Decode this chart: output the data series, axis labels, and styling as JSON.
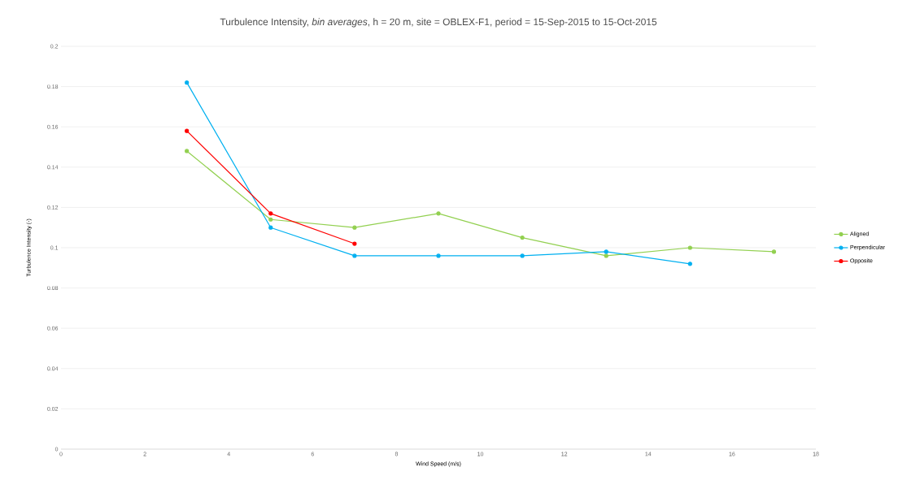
{
  "chart_data": {
    "type": "line",
    "title": "Turbulence Intensity, *bin averages*, h = 20 m, site = OBLEX-F1, period = 15-Sep-2015 to 15-Oct-2015",
    "xlabel": "Wind Speed (m/s)",
    "ylabel": "Turbulence Intensity (-)",
    "series": [
      {
        "name": "Aligned",
        "color": "#92d050",
        "x": [
          3,
          5,
          7,
          9,
          11,
          13,
          15,
          17
        ],
        "values": [
          0.148,
          0.114,
          0.11,
          0.117,
          0.105,
          0.096,
          0.1,
          0.098
        ]
      },
      {
        "name": "Perpendicular",
        "color": "#00b0f0",
        "x": [
          3,
          5,
          7,
          9,
          11,
          13,
          15
        ],
        "values": [
          0.182,
          0.11,
          0.096,
          0.096,
          0.096,
          0.098,
          0.092
        ]
      },
      {
        "name": "Opposite",
        "color": "#ff0000",
        "x": [
          3,
          5,
          7
        ],
        "values": [
          0.158,
          0.117,
          0.102
        ]
      }
    ],
    "xlim": [
      0,
      18
    ],
    "xticks": [
      0,
      2,
      4,
      6,
      8,
      10,
      12,
      14,
      16,
      18
    ],
    "ylim": [
      0,
      0.2
    ],
    "yticks": [
      0,
      0.02,
      0.04,
      0.06,
      0.08,
      0.1,
      0.12,
      0.14,
      0.16,
      0.18,
      0.2
    ],
    "grid": "y",
    "legend": "right",
    "marker": "circle",
    "line_style": "solid"
  }
}
